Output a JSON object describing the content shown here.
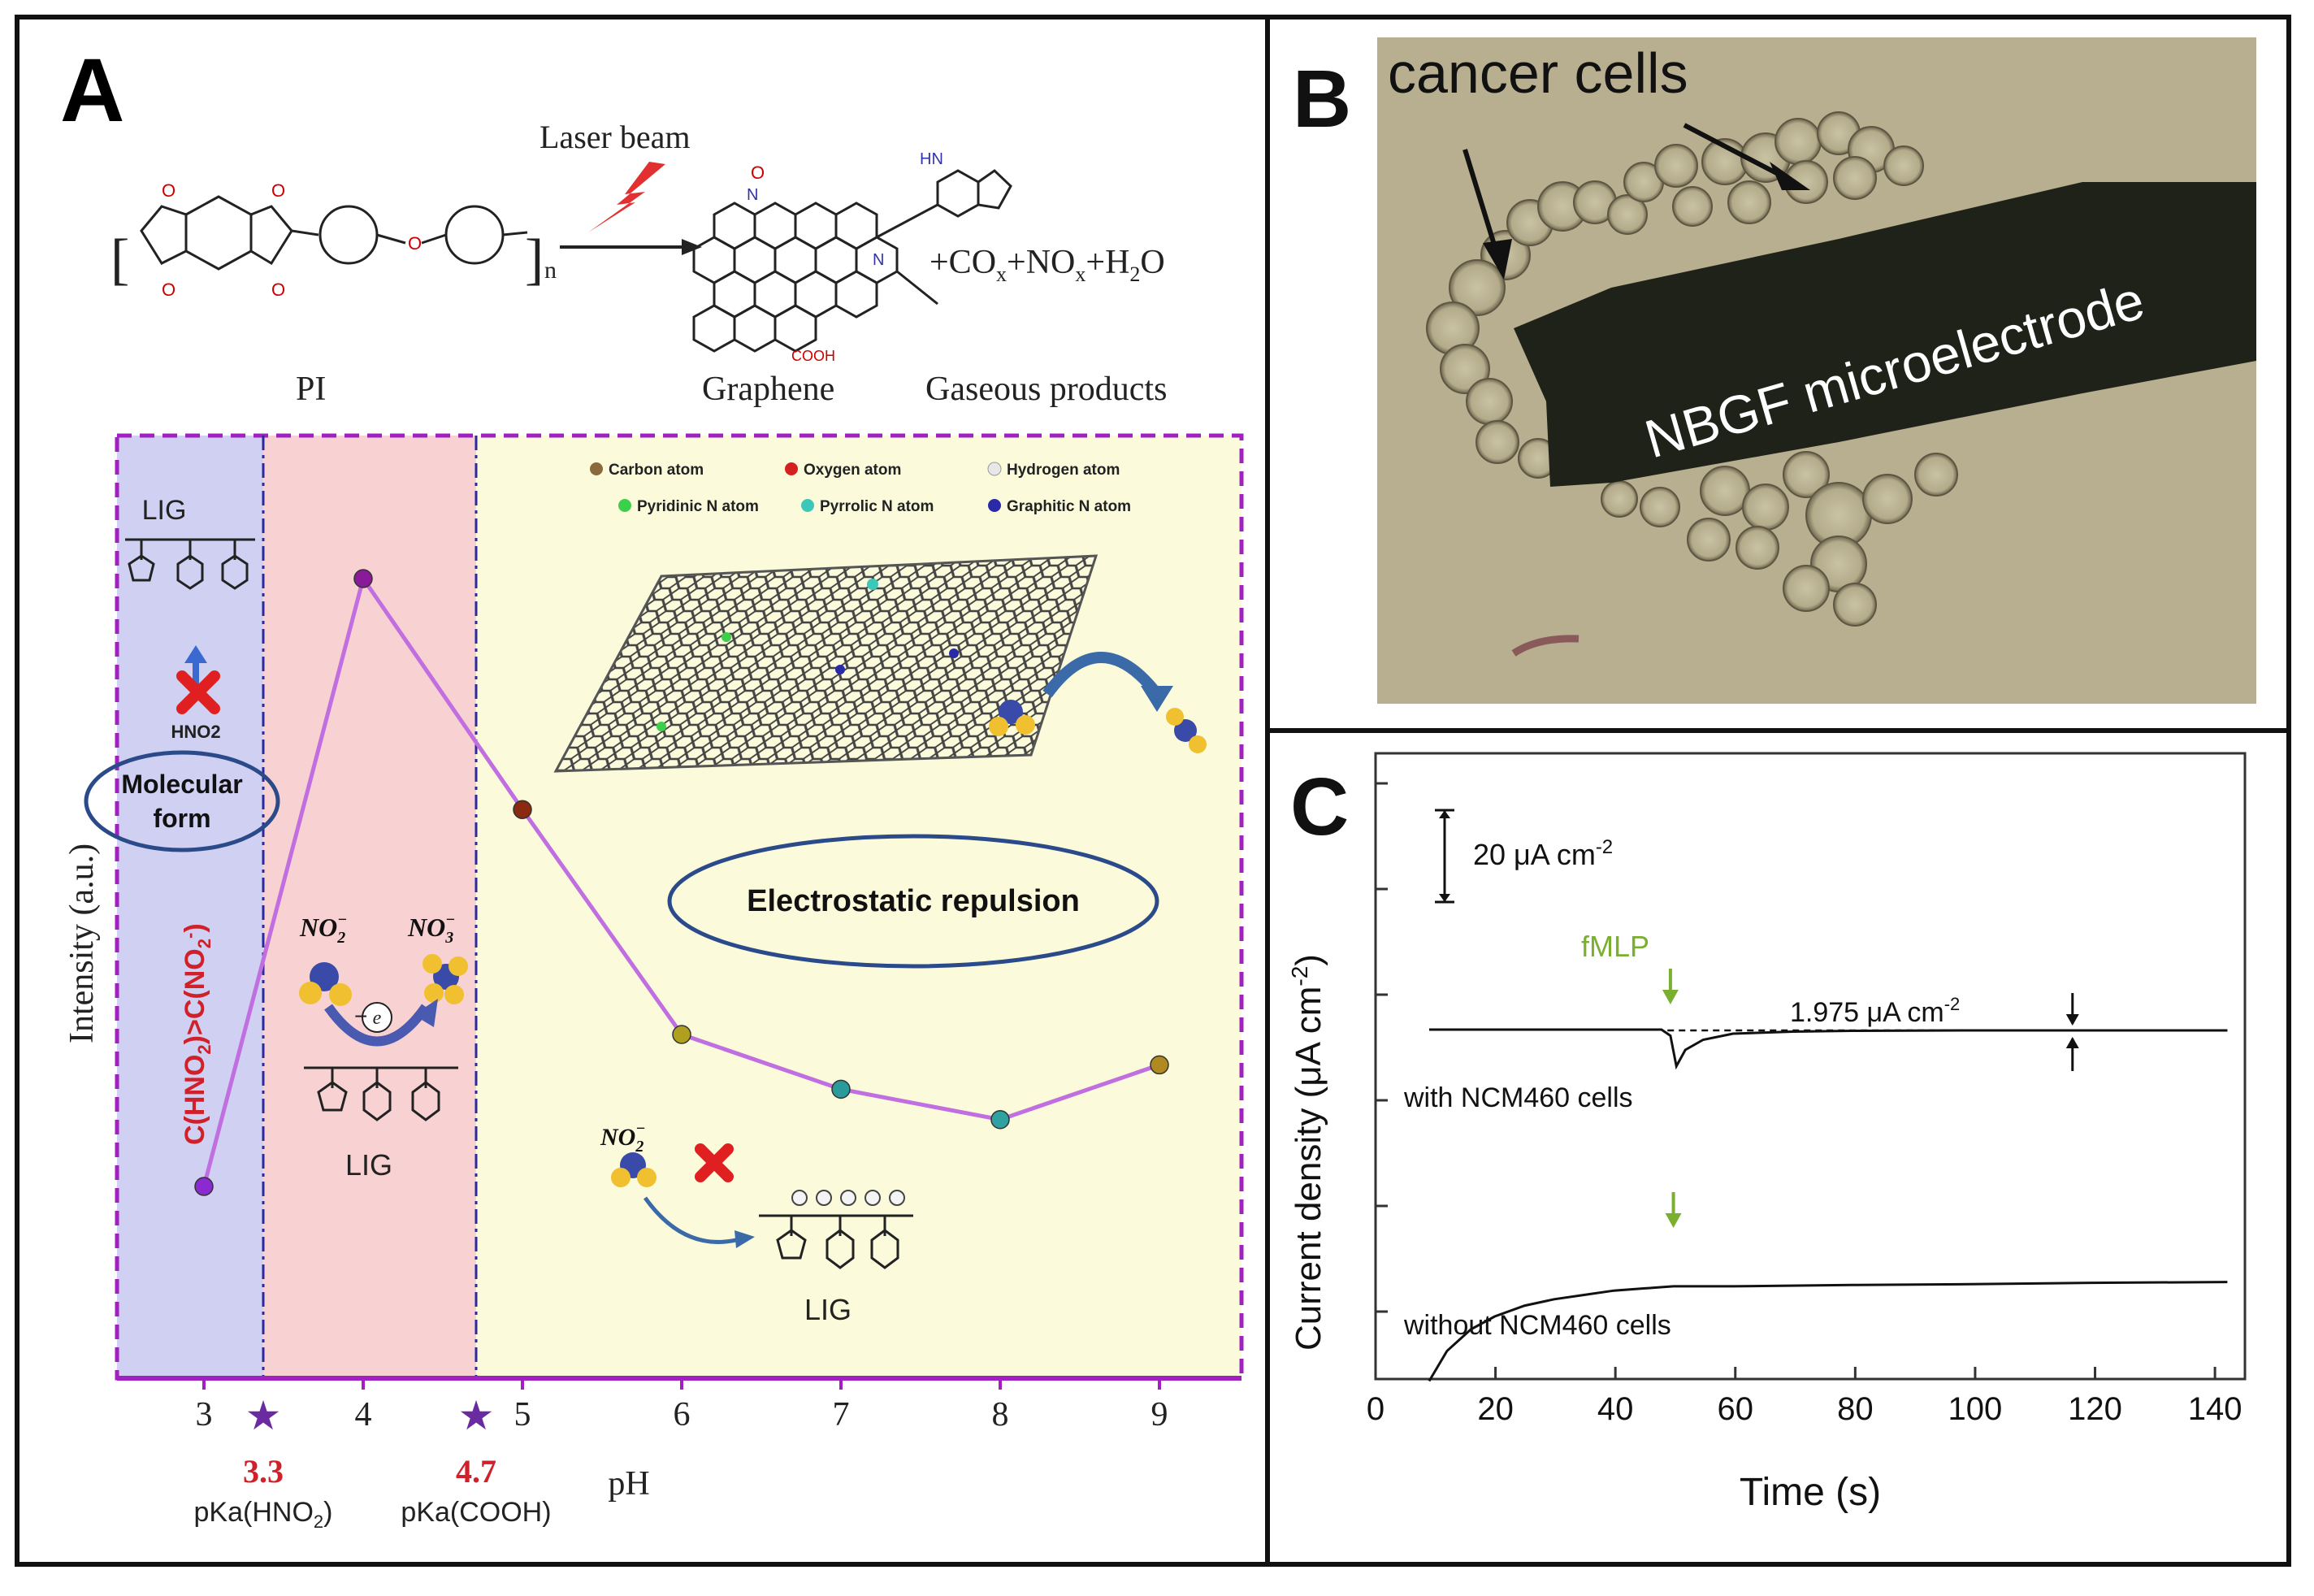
{
  "panelA": {
    "letter": "A",
    "laser_label": "Laser beam",
    "reaction_products": "+CO",
    "products_suffix_x1": "x",
    "products_mid1": "+NO",
    "products_suffix_x2": "x",
    "products_mid2": "+H",
    "products_sub2": "2",
    "products_end": "O",
    "reactant_label": "PI",
    "product_label": "Graphene",
    "gas_label": "Gaseous products",
    "legend": [
      {
        "label": "Carbon atom",
        "color": "#8a6a3a"
      },
      {
        "label": "Oxygen atom",
        "color": "#d62020"
      },
      {
        "label": "Hydrogen atom",
        "color": "#e8e8e8"
      },
      {
        "label": "Pyridinic N atom",
        "color": "#3cd04a"
      },
      {
        "label": "Pyrrolic N atom",
        "color": "#3cc8b8"
      },
      {
        "label": "Graphitic N atom",
        "color": "#2a2aa8"
      }
    ],
    "lig_top": "LIG",
    "hno2": "HNO2",
    "molecular_form": "Molecular form",
    "ratio_text": "C(HNO",
    "ratio_mid": ")>C(NO",
    "ratio_end": ")",
    "electrostatic": "Electrostatic repulsion",
    "no2": "NO",
    "no3": "NO",
    "lig_mid": "LIG",
    "lig_bottom": "LIG",
    "electron": "e",
    "ylabel": "Intensity (a.u.)",
    "xlabel": "pH",
    "pka1_value": "3.3",
    "pka1_label": "pKa(HNO",
    "pka2_value": "4.7",
    "pka2_label": "pKa(COOH)",
    "colors": {
      "region1": "#cfd0f2",
      "region2": "#f8d2d2",
      "region3": "#fbfbdc",
      "line": "#c06ee0",
      "border": "#a020c0",
      "star": "#6a2aa0"
    }
  },
  "panelB": {
    "letter": "B",
    "cells_label": "cancer cells",
    "electrode_label": "NBGF microelectrode"
  },
  "panelC": {
    "letter": "C",
    "scale_label": "20 μA cm",
    "scale_exp": "-2",
    "stimulus": "fMLP",
    "delta_label": "1.975  μA cm",
    "delta_exp": "-2",
    "trace1_label": "with NCM460 cells",
    "trace2_label": "without NCM460 cells",
    "xlabel": "Time (s)",
    "ylabel": "Current density (μA cm",
    "ylabel_exp": "-2",
    "ylabel_end": ")",
    "stimulus_color": "#7ab030"
  },
  "chart_data": [
    {
      "type": "line",
      "panel": "A",
      "x": [
        3,
        4,
        5,
        6,
        7,
        8,
        9
      ],
      "y": [
        0.0,
        1.0,
        0.62,
        0.25,
        0.16,
        0.11,
        0.2
      ],
      "point_colors": [
        "#8a2ad0",
        "#8a1a9a",
        "#8a2a10",
        "#b0a020",
        "#2a9a9a",
        "#30a0a0",
        "#b08a20"
      ],
      "xlabel": "pH",
      "ylabel": "Intensity (a.u.)",
      "xticks": [
        "3",
        "4",
        "5",
        "6",
        "7",
        "8",
        "9"
      ],
      "markers": [
        {
          "x": 3.3,
          "label": "pKa(HNO2)"
        },
        {
          "x": 4.7,
          "label": "pKa(COOH)"
        }
      ]
    },
    {
      "type": "line",
      "panel": "C",
      "xlabel": "Time (s)",
      "ylabel": "Current density (μA cm-2)",
      "xlim": [
        0,
        145
      ],
      "xticks": [
        "0",
        "20",
        "40",
        "60",
        "80",
        "100",
        "120",
        "140"
      ],
      "series": [
        {
          "name": "with NCM460 cells",
          "x": [
            9,
            20,
            30,
            40,
            48,
            49.5,
            50.5,
            52,
            55,
            60,
            70,
            80,
            100,
            120,
            143
          ],
          "y": [
            0,
            0,
            0,
            0,
            0,
            -1.5,
            -9,
            -5,
            -2.5,
            -1,
            -0.5,
            -0.3,
            -0.2,
            -0.2,
            -0.2
          ]
        },
        {
          "name": "without NCM460 cells",
          "x": [
            9,
            12,
            16,
            20,
            25,
            30,
            35,
            40,
            45,
            50,
            60,
            80,
            100,
            120,
            143
          ],
          "y": [
            -75,
            -68,
            -63,
            -60,
            -57.5,
            -56,
            -55,
            -54,
            -53.5,
            -53,
            -53,
            -52.7,
            -52.5,
            -52.2,
            -52
          ]
        }
      ]
    }
  ]
}
